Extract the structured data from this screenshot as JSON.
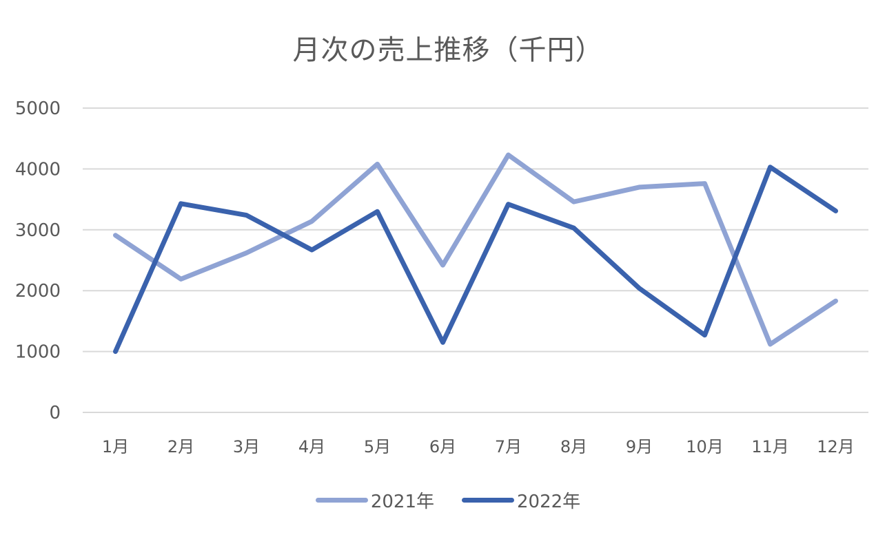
{
  "chart_data": {
    "type": "line",
    "title": "月次の売上推移（千円）",
    "xlabel": "",
    "ylabel": "",
    "categories": [
      "1月",
      "2月",
      "3月",
      "4月",
      "5月",
      "6月",
      "7月",
      "8月",
      "9月",
      "10月",
      "11月",
      "12月"
    ],
    "series": [
      {
        "name": "2021年",
        "color": "#8FA3D4",
        "values": [
          2910,
          2190,
          2620,
          3140,
          4080,
          2420,
          4230,
          3460,
          3700,
          3760,
          1120,
          1830
        ]
      },
      {
        "name": "2022年",
        "color": "#3A62AD",
        "values": [
          1000,
          3430,
          3240,
          2670,
          3300,
          1150,
          3420,
          3030,
          2040,
          1270,
          4030,
          3310
        ]
      }
    ],
    "ylim": [
      0,
      5000
    ],
    "yticks": [
      0,
      1000,
      2000,
      3000,
      4000,
      5000
    ],
    "grid": true,
    "legend_position": "bottom"
  }
}
